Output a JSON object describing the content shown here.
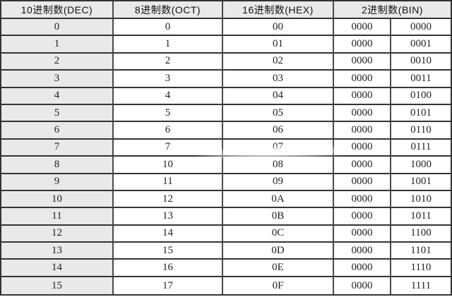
{
  "table": {
    "title_semantic": "number-base-conversion-table",
    "headers": {
      "dec": "10进制数(DEC)",
      "oct": "8进制数(OCT)",
      "hex": "16进制数(HEX)",
      "bin": "2进制数(BIN)"
    },
    "columns": [
      "dec",
      "oct",
      "hex",
      "bin_hi",
      "bin_lo"
    ],
    "rows": [
      {
        "dec": "0",
        "oct": "0",
        "hex": "00",
        "bin_hi": "0000",
        "bin_lo": "0000"
      },
      {
        "dec": "1",
        "oct": "1",
        "hex": "01",
        "bin_hi": "0000",
        "bin_lo": "0001"
      },
      {
        "dec": "2",
        "oct": "2",
        "hex": "02",
        "bin_hi": "0000",
        "bin_lo": "0010"
      },
      {
        "dec": "3",
        "oct": "3",
        "hex": "03",
        "bin_hi": "0000",
        "bin_lo": "0011"
      },
      {
        "dec": "4",
        "oct": "4",
        "hex": "04",
        "bin_hi": "0000",
        "bin_lo": "0100"
      },
      {
        "dec": "5",
        "oct": "5",
        "hex": "05",
        "bin_hi": "0000",
        "bin_lo": "0101"
      },
      {
        "dec": "6",
        "oct": "6",
        "hex": "06",
        "bin_hi": "0000",
        "bin_lo": "0110"
      },
      {
        "dec": "7",
        "oct": "7",
        "hex": "07",
        "bin_hi": "0000",
        "bin_lo": "0111"
      },
      {
        "dec": "8",
        "oct": "10",
        "hex": "08",
        "bin_hi": "0000",
        "bin_lo": "1000"
      },
      {
        "dec": "9",
        "oct": "11",
        "hex": "09",
        "bin_hi": "0000",
        "bin_lo": "1001"
      },
      {
        "dec": "10",
        "oct": "12",
        "hex": "0A",
        "bin_hi": "0000",
        "bin_lo": "1010"
      },
      {
        "dec": "11",
        "oct": "13",
        "hex": "0B",
        "bin_hi": "0000",
        "bin_lo": "1011"
      },
      {
        "dec": "12",
        "oct": "14",
        "hex": "0C",
        "bin_hi": "0000",
        "bin_lo": "1100"
      },
      {
        "dec": "13",
        "oct": "15",
        "hex": "0D",
        "bin_hi": "0000",
        "bin_lo": "1101"
      },
      {
        "dec": "14",
        "oct": "16",
        "hex": "0E",
        "bin_hi": "0000",
        "bin_lo": "1110"
      },
      {
        "dec": "15",
        "oct": "17",
        "hex": "0F",
        "bin_hi": "0000",
        "bin_lo": "1111"
      }
    ]
  },
  "colors": {
    "header_bg": "#e9e9e9",
    "first_column_bg": "#e9e9e9",
    "cell_bg": "#ffffff",
    "border": "#343434",
    "text": "#1f1f1f"
  }
}
